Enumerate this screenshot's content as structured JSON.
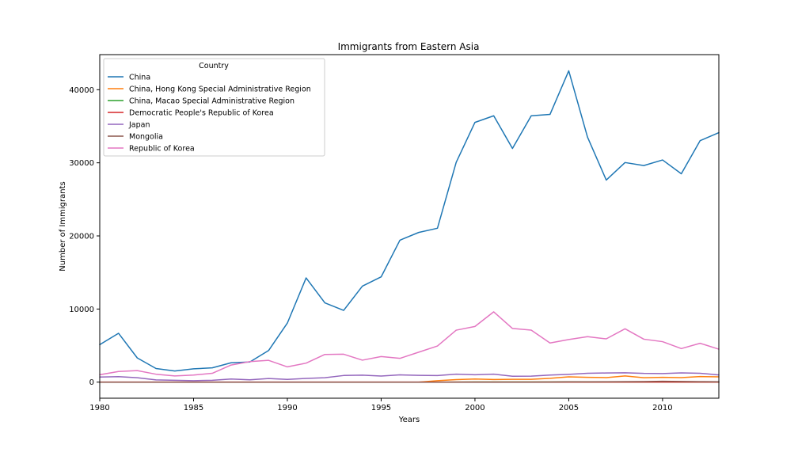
{
  "chart_data": {
    "type": "line",
    "title": "Immigrants from Eastern Asia",
    "xlabel": "Years",
    "ylabel": "Number of Immigrants",
    "xlim": [
      1980,
      2013
    ],
    "ylim": [
      -2200,
      44800
    ],
    "xticks": [
      1980,
      1985,
      1990,
      1995,
      2000,
      2005,
      2010
    ],
    "yticks": [
      0,
      10000,
      20000,
      30000,
      40000
    ],
    "grid": false,
    "legend": {
      "title": "Country",
      "placement": "top-left"
    },
    "x": [
      1980,
      1981,
      1982,
      1983,
      1984,
      1985,
      1986,
      1987,
      1988,
      1989,
      1990,
      1991,
      1992,
      1993,
      1994,
      1995,
      1996,
      1997,
      1998,
      1999,
      2000,
      2001,
      2002,
      2003,
      2004,
      2005,
      2006,
      2007,
      2008,
      2009,
      2010,
      2011,
      2012,
      2013
    ],
    "series": [
      {
        "name": "China",
        "color": "#1f77b4",
        "values": [
          5123,
          6682,
          3308,
          1863,
          1527,
          1816,
          1960,
          2643,
          2758,
          4323,
          8076,
          14255,
          10846,
          9817,
          13128,
          14398,
          19415,
          20475,
          21049,
          30069,
          35529,
          36434,
          31961,
          36439,
          36619,
          42584,
          33518,
          27642,
          30037,
          29622,
          30391,
          28502,
          33024,
          34129
        ]
      },
      {
        "name": "China, Hong Kong Special Administrative Region",
        "color": "#ff7f0e",
        "values": [
          0,
          0,
          0,
          0,
          0,
          0,
          0,
          0,
          0,
          0,
          0,
          0,
          0,
          0,
          0,
          0,
          0,
          0,
          200,
          350,
          420,
          360,
          390,
          380,
          520,
          720,
          660,
          620,
          850,
          600,
          650,
          620,
          760,
          720
        ]
      },
      {
        "name": "China, Macao Special Administrative Region",
        "color": "#2ca02c",
        "values": [
          0,
          0,
          0,
          0,
          0,
          0,
          0,
          0,
          0,
          0,
          0,
          0,
          0,
          0,
          0,
          0,
          0,
          0,
          0,
          10,
          20,
          20,
          15,
          20,
          25,
          30,
          25,
          20,
          25,
          25,
          30,
          25,
          20,
          20
        ]
      },
      {
        "name": "Democratic People's Republic of Korea",
        "color": "#d62728",
        "values": [
          1,
          1,
          1,
          1,
          1,
          1,
          1,
          1,
          1,
          1,
          1,
          1,
          1,
          1,
          1,
          1,
          1,
          1,
          1,
          1,
          1,
          1,
          1,
          1,
          1,
          1,
          1,
          1,
          1,
          1,
          1,
          1,
          1,
          1
        ]
      },
      {
        "name": "Japan",
        "color": "#9467bd",
        "values": [
          701,
          756,
          598,
          309,
          246,
          198,
          248,
          422,
          324,
          494,
          379,
          506,
          605,
          907,
          956,
          826,
          994,
          924,
          897,
          1083,
          1010,
          1092,
          806,
          817,
          973,
          1067,
          1212,
          1250,
          1284,
          1194,
          1168,
          1265,
          1214,
          982
        ]
      },
      {
        "name": "Mongolia",
        "color": "#8c564b",
        "values": [
          0,
          0,
          0,
          0,
          0,
          0,
          0,
          0,
          0,
          0,
          0,
          0,
          0,
          0,
          0,
          0,
          0,
          0,
          0,
          0,
          0,
          0,
          0,
          0,
          10,
          30,
          40,
          50,
          60,
          80,
          120,
          90,
          60,
          50
        ]
      },
      {
        "name": "Republic of Korea",
        "color": "#e377c2",
        "values": [
          1011,
          1456,
          1572,
          1081,
          847,
          962,
          1208,
          2338,
          2805,
          2979,
          2087,
          2598,
          3790,
          3819,
          3005,
          3501,
          3250,
          4093,
          4938,
          7108,
          7615,
          9617,
          7338,
          7118,
          5352,
          5832,
          6215,
          5920,
          7294,
          5874,
          5537,
          4588,
          5316,
          4509
        ]
      }
    ]
  }
}
